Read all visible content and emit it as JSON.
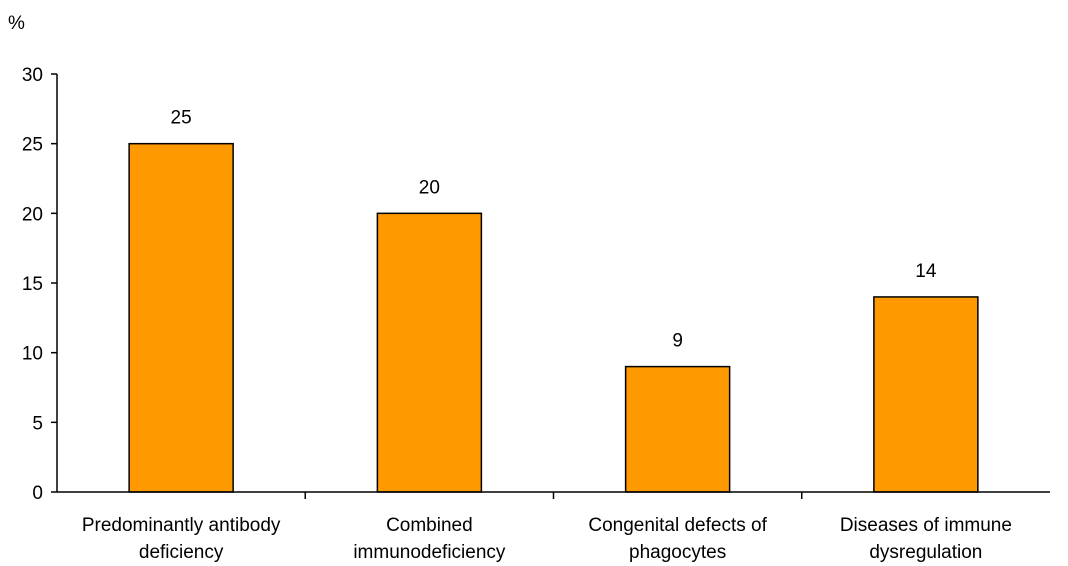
{
  "chart_data": {
    "type": "bar",
    "categories": [
      [
        "Predominantly antibody",
        "deficiency"
      ],
      [
        "Combined",
        "immunodeficiency"
      ],
      [
        "Congenital defects of",
        "phagocytes"
      ],
      [
        "Diseases of immune",
        "dysregulation"
      ]
    ],
    "values": [
      25,
      20,
      9,
      14
    ],
    "ylabel": "%",
    "ylim": [
      0,
      30
    ],
    "yticks": [
      0,
      5,
      10,
      15,
      20,
      25,
      30
    ],
    "data_labels": [
      "25",
      "20",
      "9",
      "14"
    ],
    "bar_color": "#FF9900",
    "bar_stroke": "#000000",
    "grid": false,
    "legend": "none"
  }
}
